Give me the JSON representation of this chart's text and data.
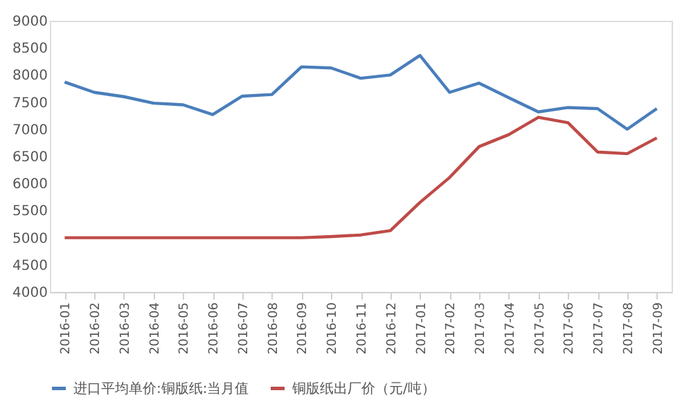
{
  "chart_data": {
    "type": "line",
    "categories": [
      "2016-01",
      "2016-02",
      "2016-03",
      "2016-04",
      "2016-05",
      "2016-06",
      "2016-07",
      "2016-08",
      "2016-09",
      "2016-10",
      "2016-11",
      "2016-12",
      "2017-01",
      "2017-02",
      "2017-03",
      "2017-04",
      "2017-05",
      "2017-06",
      "2017-07",
      "2017-08",
      "2017-09"
    ],
    "series": [
      {
        "name": "进口平均单价:铜版纸:当月值",
        "color": "#4a7ebb",
        "values": [
          7870,
          7680,
          7600,
          7480,
          7450,
          7270,
          7610,
          7640,
          8150,
          8130,
          7940,
          8000,
          8360,
          7680,
          7850,
          7580,
          7320,
          7400,
          7380,
          7000,
          7380
        ]
      },
      {
        "name": "铜版纸出厂价（元/吨）",
        "color": "#be4b48",
        "values": [
          5000,
          5000,
          5000,
          5000,
          5000,
          5000,
          5000,
          5000,
          5000,
          5020,
          5050,
          5130,
          5650,
          6110,
          6680,
          6900,
          7220,
          7120,
          6580,
          6550,
          6840
        ]
      }
    ],
    "ylim": [
      4000,
      9000
    ],
    "yticks": [
      4000,
      4500,
      5000,
      5500,
      6000,
      6500,
      7000,
      7500,
      8000,
      8500,
      9000
    ],
    "grid": false,
    "legend": "bottom",
    "marker": "none",
    "line_style": "solid"
  }
}
